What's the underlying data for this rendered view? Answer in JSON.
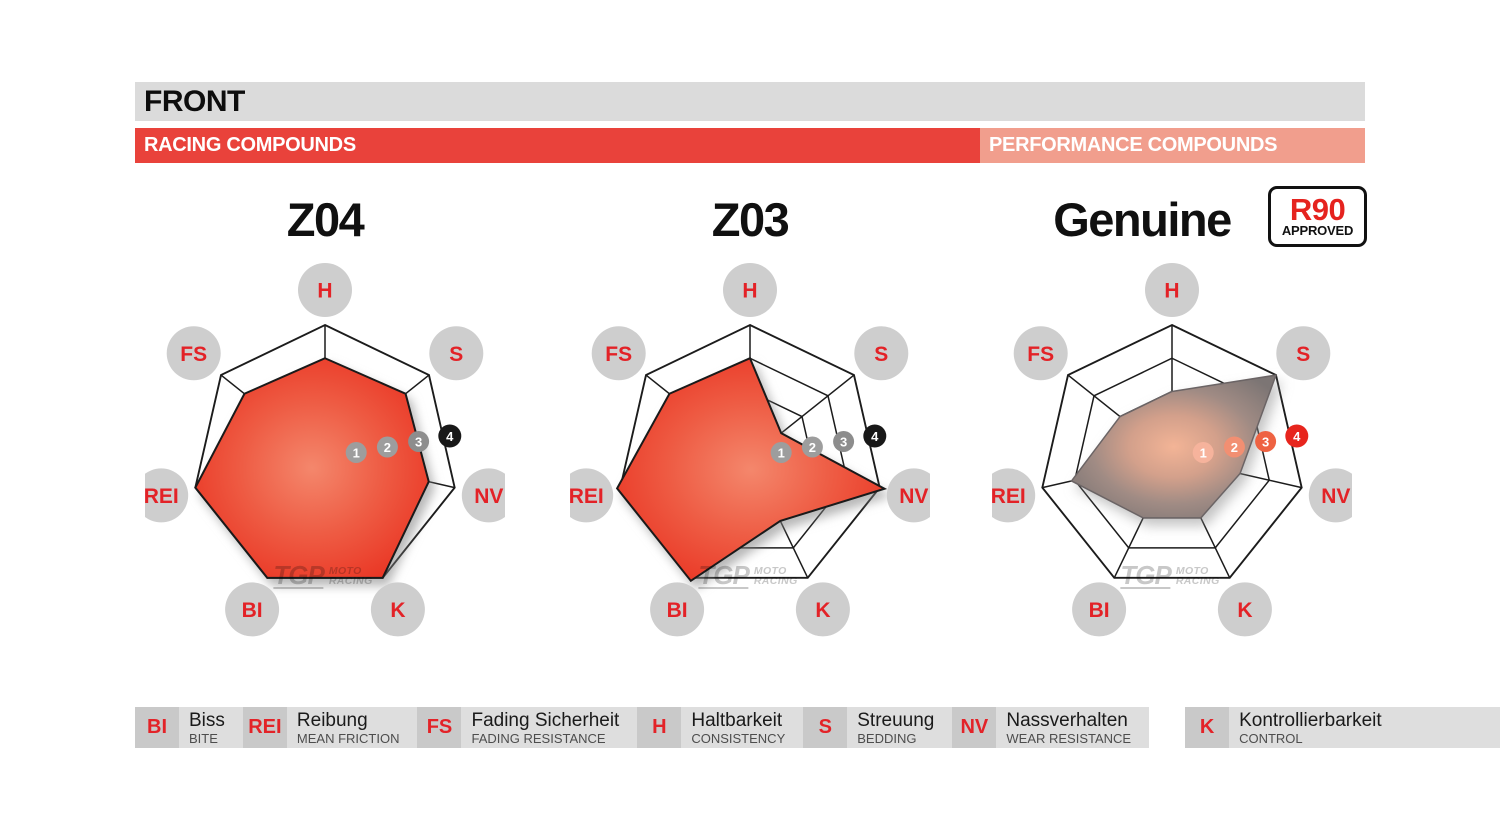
{
  "header": {
    "title": "FRONT"
  },
  "sections": {
    "racing": {
      "label": "RACING COMPOUNDS",
      "color": "#e9423b"
    },
    "performance": {
      "label": "PERFORMANCE COMPOUNDS",
      "color": "#f19e8d"
    }
  },
  "badge": {
    "line1": "R90",
    "line2": "APPROVED"
  },
  "watermark": {
    "tgp": "TGP",
    "line1": "MOTO",
    "line2": "RACING"
  },
  "chart_data": [
    {
      "type": "radar",
      "title": "Z04",
      "section": "RACING COMPOUNDS",
      "axes": [
        "H",
        "S",
        "NV",
        "K",
        "BI",
        "REI",
        "FS"
      ],
      "values": [
        3,
        3.1,
        3.2,
        4,
        4,
        4,
        3.1
      ],
      "scale_labels": [
        "1",
        "2",
        "3",
        "4"
      ],
      "max": 4,
      "style": "red"
    },
    {
      "type": "radar",
      "title": "Z03",
      "section": "RACING COMPOUNDS",
      "axes": [
        "H",
        "S",
        "NV",
        "K",
        "BI",
        "REI",
        "FS"
      ],
      "values": [
        3,
        1.2,
        4.15,
        2.1,
        4.1,
        4.1,
        3.1
      ],
      "scale_labels": [
        "1",
        "2",
        "3",
        "4"
      ],
      "max": 4,
      "style": "red"
    },
    {
      "type": "radar",
      "title": "Genuine",
      "section": "PERFORMANCE COMPOUNDS",
      "badge": "R90 APPROVED",
      "axes": [
        "H",
        "S",
        "NV",
        "K",
        "BI",
        "REI",
        "FS"
      ],
      "values": [
        2,
        4,
        2.1,
        2,
        2,
        3.1,
        2
      ],
      "scale_labels": [
        "1",
        "2",
        "3",
        "4"
      ],
      "max": 4,
      "style": "gray"
    }
  ],
  "radar_style": {
    "red": {
      "gradient": [
        [
          "0%",
          "#f4876c"
        ],
        [
          "50%",
          "#ee5b43"
        ],
        [
          "100%",
          "#e93120"
        ]
      ],
      "poly_stroke": "#1a1a1a",
      "poly_stroke_width": 2,
      "marker_fills": [
        "#9d9d9d",
        "#9d9d9d",
        "#8d8d8d",
        "#181818"
      ],
      "shadow_class": "poly-red"
    },
    "gray": {
      "gradient": [
        [
          "0%",
          "#f3b496"
        ],
        [
          "35%",
          "#d3a08b"
        ],
        [
          "65%",
          "#a08b84"
        ],
        [
          "100%",
          "#7c7574"
        ]
      ],
      "poly_stroke": "#6b6465",
      "poly_stroke_width": 1.5,
      "marker_fills": [
        "#f6b39c",
        "#f28f72",
        "#ee6242",
        "#e7251d"
      ],
      "shadow_class": "poly-gray"
    },
    "grid_stroke": "#1c1c1c",
    "label_circle_fill": "#cecece",
    "label_text_color": "#e32227",
    "marker_text_color": "#ffffff"
  },
  "legend": [
    {
      "abbr": "BI",
      "de": "Biss",
      "en": "BITE"
    },
    {
      "abbr": "REI",
      "de": "Reibung",
      "en": "MEAN FRICTION"
    },
    {
      "abbr": "FS",
      "de": "Fading Sicherheit",
      "en": "FADING RESISTANCE"
    },
    {
      "abbr": "H",
      "de": "Haltbarkeit",
      "en": "CONSISTENCY"
    },
    {
      "abbr": "S",
      "de": "Streuung",
      "en": "BEDDING"
    },
    {
      "abbr": "NV",
      "de": "Nassverhalten",
      "en": "WEAR RESISTANCE"
    },
    {
      "abbr": "K",
      "de": "Kontrollierbarkeit",
      "en": "CONTROL"
    }
  ]
}
